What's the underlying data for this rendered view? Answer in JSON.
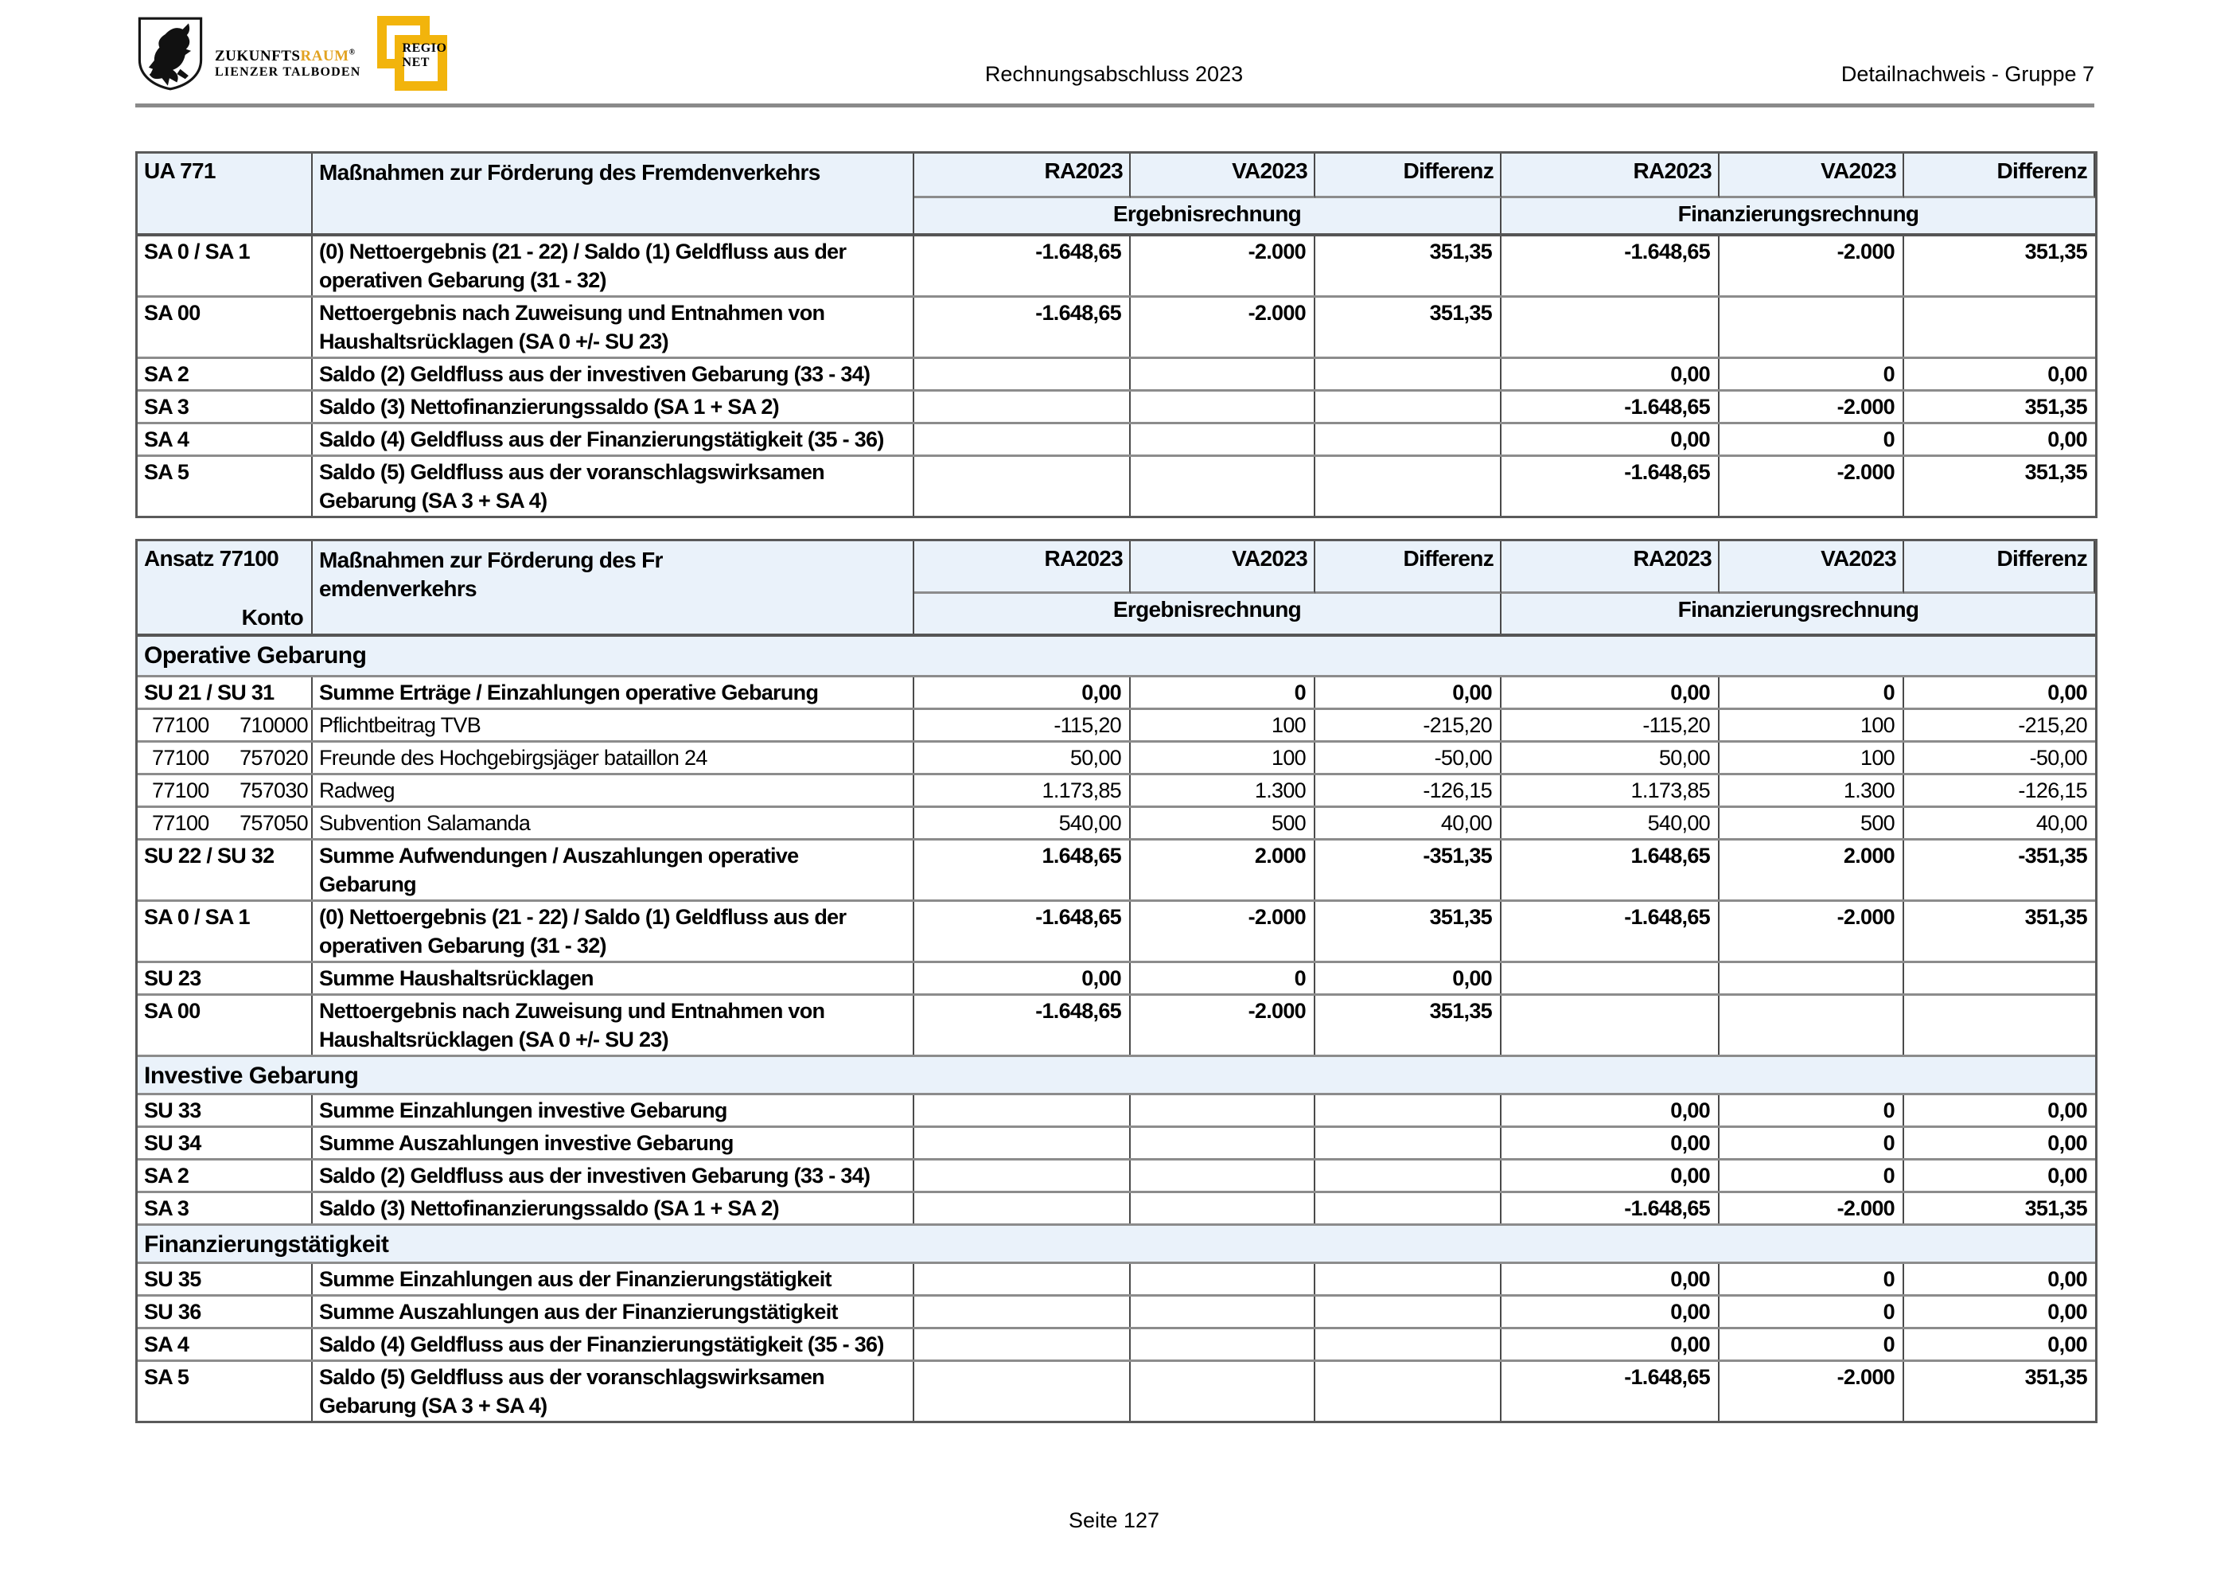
{
  "header": {
    "center_title": "Rechnungsabschluss 2023",
    "right_title": "Detailnachweis - Gruppe 7"
  },
  "logo": {
    "brand_black": "ZUKUNFTS",
    "brand_gold": "RAUM",
    "brand_reg": "®",
    "brand_sub": "LIENZER TALBODEN",
    "regionet": "REGIO\nNET",
    "gold_color": "#e2a321",
    "regionet_yellow": "#f2b40c"
  },
  "colors": {
    "header_band_bg": "#eaf2fa",
    "border_gray": "#8c8c8c",
    "rule_gray": "#8a8a8a"
  },
  "col_headers": {
    "ra": "RA2023",
    "va": "VA2023",
    "diff": "Differenz",
    "ergebnis": "Ergebnisrechnung",
    "fin": "Finanzierungsrechnung"
  },
  "table1": {
    "code": "UA 771",
    "title": "Maßnahmen zur Förderung des Fremdenverkehrs",
    "rows": [
      {
        "code": "SA 0 / SA 1",
        "label": "(0) Nettoergebnis (21 - 22) / Saldo (1) Geldfluss aus der\noperativen Gebarung (31 - 32)",
        "values": [
          "-1.648,65",
          "-2.000",
          "351,35",
          "-1.648,65",
          "-2.000",
          "351,35"
        ]
      },
      {
        "code": "SA 00",
        "label": "Nettoergebnis nach Zuweisung und Entnahmen von\nHaushaltsrücklagen (SA 0 +/- SU 23)",
        "values": [
          "-1.648,65",
          "-2.000",
          "351,35",
          "",
          "",
          ""
        ]
      },
      {
        "code": "SA 2",
        "label": "Saldo (2) Geldfluss aus der investiven Gebarung (33 - 34)",
        "values": [
          "",
          "",
          "",
          "0,00",
          "0",
          "0,00"
        ]
      },
      {
        "code": "SA 3",
        "label": "Saldo (3) Nettofinanzierungssaldo (SA 1 + SA 2)",
        "values": [
          "",
          "",
          "",
          "-1.648,65",
          "-2.000",
          "351,35"
        ]
      },
      {
        "code": "SA 4",
        "label": "Saldo (4) Geldfluss aus der Finanzierungstätigkeit (35 - 36)",
        "values": [
          "",
          "",
          "",
          "0,00",
          "0",
          "0,00"
        ]
      },
      {
        "code": "SA 5",
        "label": "Saldo (5) Geldfluss aus der voranschlagswirksamen\nGebarung (SA 3 + SA 4)",
        "values": [
          "",
          "",
          "",
          "-1.648,65",
          "-2.000",
          "351,35"
        ]
      }
    ]
  },
  "table2": {
    "code": "Ansatz 77100",
    "title": "Maßnahmen zur Förderung des Fr\nemdenverkehrs",
    "konto_label": "Konto",
    "sections": [
      {
        "title": "Operative Gebarung",
        "rows": [
          {
            "code": "SU 21 / SU 31",
            "label": "Summe Erträge / Einzahlungen operative Gebarung",
            "values": [
              "0,00",
              "0",
              "0,00",
              "0,00",
              "0",
              "0,00"
            ]
          },
          {
            "code": "77100",
            "code2": "710000",
            "plain": true,
            "label": "Pflichtbeitrag TVB",
            "values": [
              "-115,20",
              "100",
              "-215,20",
              "-115,20",
              "100",
              "-215,20"
            ]
          },
          {
            "code": "77100",
            "code2": "757020",
            "plain": true,
            "label": "Freunde des Hochgebirgsjäger bataillon 24",
            "values": [
              "50,00",
              "100",
              "-50,00",
              "50,00",
              "100",
              "-50,00"
            ]
          },
          {
            "code": "77100",
            "code2": "757030",
            "plain": true,
            "label": "Radweg",
            "values": [
              "1.173,85",
              "1.300",
              "-126,15",
              "1.173,85",
              "1.300",
              "-126,15"
            ]
          },
          {
            "code": "77100",
            "code2": "757050",
            "plain": true,
            "label": "Subvention Salamanda",
            "values": [
              "540,00",
              "500",
              "40,00",
              "540,00",
              "500",
              "40,00"
            ]
          },
          {
            "code": "SU 22 / SU 32",
            "label": "Summe Aufwendungen / Auszahlungen operative\nGebarung",
            "values": [
              "1.648,65",
              "2.000",
              "-351,35",
              "1.648,65",
              "2.000",
              "-351,35"
            ]
          },
          {
            "code": "SA 0 / SA 1",
            "label": "(0) Nettoergebnis (21 - 22) / Saldo (1) Geldfluss aus der\noperativen Gebarung (31 - 32)",
            "values": [
              "-1.648,65",
              "-2.000",
              "351,35",
              "-1.648,65",
              "-2.000",
              "351,35"
            ]
          },
          {
            "code": "SU 23",
            "label": "Summe Haushaltsrücklagen",
            "values": [
              "0,00",
              "0",
              "0,00",
              "",
              "",
              ""
            ]
          },
          {
            "code": "SA 00",
            "label": "Nettoergebnis nach Zuweisung und Entnahmen von\nHaushaltsrücklagen (SA 0 +/- SU 23)",
            "values": [
              "-1.648,65",
              "-2.000",
              "351,35",
              "",
              "",
              ""
            ]
          }
        ]
      },
      {
        "title": "Investive Gebarung",
        "rows": [
          {
            "code": "SU 33",
            "label": "Summe Einzahlungen investive Gebarung",
            "values": [
              "",
              "",
              "",
              "0,00",
              "0",
              "0,00"
            ]
          },
          {
            "code": "SU 34",
            "label": "Summe Auszahlungen investive Gebarung",
            "values": [
              "",
              "",
              "",
              "0,00",
              "0",
              "0,00"
            ]
          },
          {
            "code": "SA 2",
            "label": "Saldo (2) Geldfluss aus der investiven Gebarung (33 - 34)",
            "values": [
              "",
              "",
              "",
              "0,00",
              "0",
              "0,00"
            ]
          },
          {
            "code": "SA 3",
            "label": "Saldo (3) Nettofinanzierungssaldo (SA 1 + SA 2)",
            "values": [
              "",
              "",
              "",
              "-1.648,65",
              "-2.000",
              "351,35"
            ]
          }
        ]
      },
      {
        "title": "Finanzierungstätigkeit",
        "rows": [
          {
            "code": "SU 35",
            "label": "Summe Einzahlungen aus der Finanzierungstätigkeit",
            "values": [
              "",
              "",
              "",
              "0,00",
              "0",
              "0,00"
            ]
          },
          {
            "code": "SU 36",
            "label": "Summe Auszahlungen aus der Finanzierungstätigkeit",
            "values": [
              "",
              "",
              "",
              "0,00",
              "0",
              "0,00"
            ]
          },
          {
            "code": "SA 4",
            "label": "Saldo (4) Geldfluss aus der Finanzierungstätigkeit (35 - 36)",
            "values": [
              "",
              "",
              "",
              "0,00",
              "0",
              "0,00"
            ]
          },
          {
            "code": "SA 5",
            "label": "Saldo (5) Geldfluss aus der voranschlagswirksamen\nGebarung (SA 3 + SA 4)",
            "values": [
              "",
              "",
              "",
              "-1.648,65",
              "-2.000",
              "351,35"
            ]
          }
        ]
      }
    ]
  },
  "footer": {
    "page": "Seite 127"
  }
}
